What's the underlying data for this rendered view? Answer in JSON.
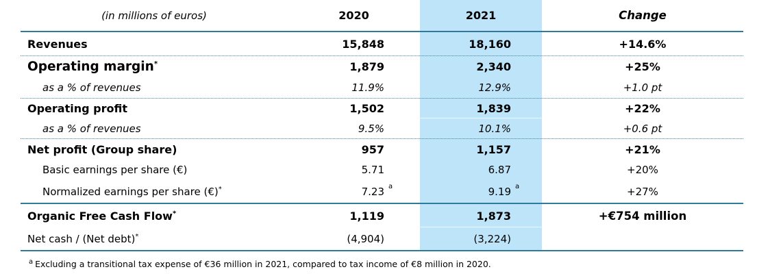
{
  "colors": {
    "highlight_column": "#bde4f9",
    "rule_solid": "#2e7a9b",
    "rule_dotted": "#41809f"
  },
  "header": {
    "label": "(in millions of euros)",
    "col_2020": "2020",
    "col_2021": "2021",
    "col_change": "Change"
  },
  "rows": [
    {
      "label": "Revenues",
      "y2020": "15,848",
      "y2021": "18,160",
      "change": "+14.6%"
    },
    {
      "label": "Operating margin",
      "label_sup": "*",
      "y2020": "1,879",
      "y2021": "2,340",
      "change": "+25%"
    },
    {
      "label": "as a % of revenues",
      "y2020": "11.9%",
      "y2021": "12.9%",
      "change": "+1.0 pt"
    },
    {
      "label": "Operating profit",
      "y2020": "1,502",
      "y2021": "1,839",
      "change": "+22%"
    },
    {
      "label": "as a % of revenues",
      "y2020": "9.5%",
      "y2021": "10.1%",
      "change": "+0.6 pt"
    },
    {
      "label": "Net profit (Group share)",
      "y2020": "957",
      "y2021": "1,157",
      "change": "+21%"
    },
    {
      "label": "Basic earnings per share (€)",
      "y2020": "5.71",
      "y2021": "6.87",
      "change": "+20%"
    },
    {
      "label": "Normalized earnings per share (€)",
      "label_sup": "*",
      "y2020": "7.23",
      "y2020_sup": "a",
      "y2021": "9.19",
      "y2021_sup": "a",
      "change": "+27%"
    },
    {
      "label": "Organic Free Cash Flow",
      "label_sup": "*",
      "y2020": "1,119",
      "y2021": "1,873",
      "change": "+€754 million"
    },
    {
      "label": "Net cash / (Net debt)",
      "label_sup": "*",
      "y2020": "(4,904)",
      "y2021": "(3,224)",
      "change": ""
    }
  ],
  "footnote": {
    "sup": "a",
    "text": "Excluding a transitional tax expense of €36 million in 2021, compared to tax income of €8 million in 2020."
  }
}
